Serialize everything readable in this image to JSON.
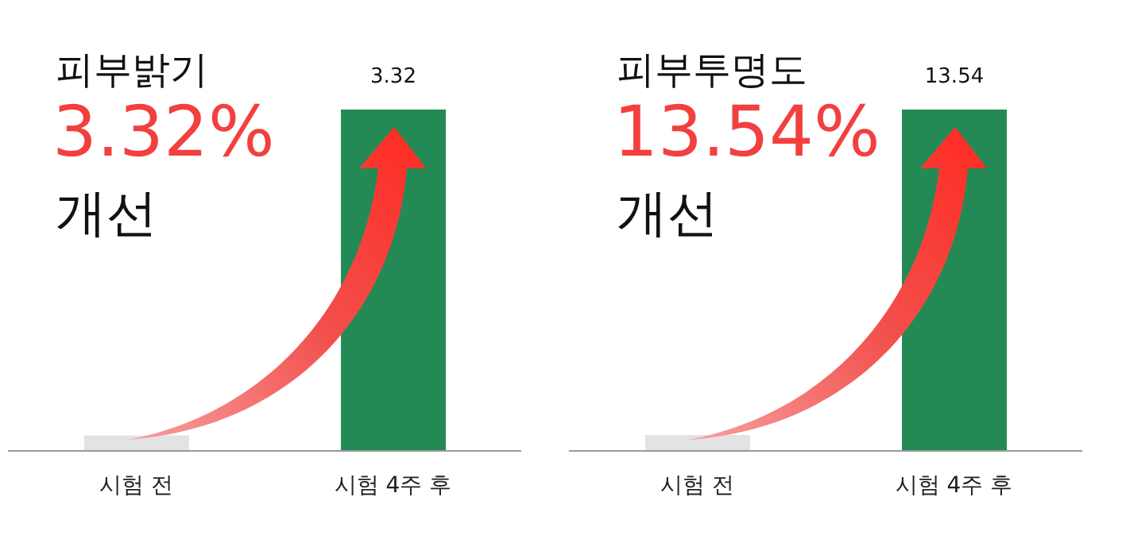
{
  "chart_data": [
    {
      "type": "bar",
      "title": "피부밝기",
      "annotations": [
        "3.32%",
        "개선"
      ],
      "categories": [
        "시험 전",
        "시험 4주 후"
      ],
      "values": [
        0.15,
        3.32
      ],
      "colors": [
        "#e3e3e3",
        "#248a55"
      ],
      "value_labels": [
        null,
        "3.32"
      ],
      "grid": false,
      "legend": false,
      "tick_labels": "x"
    },
    {
      "type": "bar",
      "title": "피부투명도",
      "annotations": [
        "13.54%",
        "개선"
      ],
      "categories": [
        "시험 전",
        "시험 4주 후"
      ],
      "values": [
        0.63,
        13.54
      ],
      "colors": [
        "#e3e3e3",
        "#248a55"
      ],
      "value_labels": [
        null,
        "13.54"
      ],
      "grid": false,
      "legend": false,
      "tick_labels": "x"
    }
  ]
}
